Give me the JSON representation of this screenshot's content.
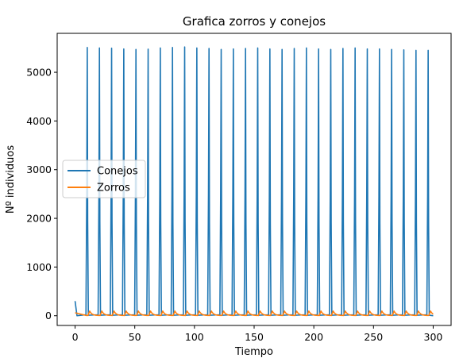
{
  "chart_data": {
    "type": "line",
    "title": "Grafica zorros y conejos",
    "xlabel": "Tiempo",
    "ylabel": "Nº individuos",
    "xlim": [
      -15,
      315
    ],
    "ylim": [
      -200,
      5800
    ],
    "x_ticks": [
      0,
      50,
      100,
      150,
      200,
      250,
      300
    ],
    "y_ticks": [
      0,
      1000,
      2000,
      3000,
      4000,
      5000
    ],
    "grid": false,
    "legend_position": "center-left",
    "period": 10.2,
    "series": [
      {
        "name": "Conejos",
        "color": "#1f77b4",
        "initial": 300,
        "min": 0,
        "peaks_x": [
          10.2,
          20.4,
          30.6,
          40.8,
          51.0,
          61.2,
          71.4,
          81.6,
          91.8,
          102.0,
          112.2,
          122.4,
          132.6,
          142.8,
          153.0,
          163.2,
          173.4,
          183.6,
          193.8,
          204.0,
          214.2,
          224.4,
          234.6,
          244.8,
          255.0,
          265.2,
          275.4,
          285.6,
          295.8
        ],
        "peaks_y": [
          5510,
          5500,
          5495,
          5480,
          5470,
          5475,
          5500,
          5510,
          5520,
          5500,
          5490,
          5470,
          5480,
          5490,
          5500,
          5480,
          5470,
          5490,
          5500,
          5480,
          5470,
          5490,
          5500,
          5480,
          5480,
          5470,
          5460,
          5450,
          5450
        ]
      },
      {
        "name": "Zorros",
        "color": "#ff7f0e",
        "initial": 60,
        "min": 5,
        "peak": 95
      }
    ]
  }
}
